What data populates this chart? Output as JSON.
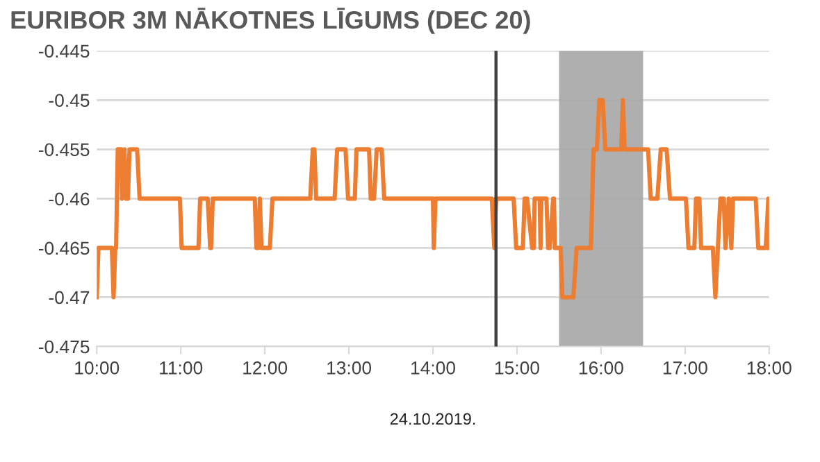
{
  "chart_data": {
    "type": "line",
    "title": "EURIBOR 3M NĀKOTNES LĪGUMS (DEC 20)",
    "xlabel": "24.10.2019.",
    "xlim": [
      10,
      18
    ],
    "xticks": [
      {
        "value": 10,
        "label": "10:00"
      },
      {
        "value": 11,
        "label": "11:00"
      },
      {
        "value": 12,
        "label": "12:00"
      },
      {
        "value": 13,
        "label": "13:00"
      },
      {
        "value": 14,
        "label": "14:00"
      },
      {
        "value": 15,
        "label": "15:00"
      },
      {
        "value": 16,
        "label": "16:00"
      },
      {
        "value": 17,
        "label": "17:00"
      },
      {
        "value": 18,
        "label": "18:00"
      }
    ],
    "ylim": [
      -0.475,
      -0.445
    ],
    "yticks": [
      -0.475,
      -0.47,
      -0.465,
      -0.46,
      -0.455,
      -0.45,
      -0.445
    ],
    "grid": "y",
    "marker": "none",
    "line_style": "solid",
    "ref_lines": [
      {
        "axis": "x",
        "value": 14.75,
        "color": "#404040"
      }
    ],
    "bands": [
      {
        "axis": "x",
        "from": 15.5,
        "to": 16.5,
        "color": "#a6a6a6"
      }
    ],
    "series": [
      {
        "color": "#ed7d31",
        "x": [
          10.0,
          10.02,
          10.18,
          10.2,
          10.22,
          10.23,
          10.25,
          10.29,
          10.3,
          10.33,
          10.35,
          10.37,
          10.39,
          10.48,
          10.51,
          10.99,
          11.01,
          11.21,
          11.23,
          11.32,
          11.35,
          11.36,
          11.38,
          11.88,
          11.9,
          11.92,
          11.94,
          11.96,
          12.06,
          12.09,
          12.54,
          12.57,
          12.59,
          12.61,
          12.83,
          12.86,
          12.96,
          12.99,
          13.07,
          13.09,
          13.24,
          13.26,
          13.3,
          13.33,
          13.39,
          13.42,
          14.0,
          14.01,
          14.03,
          14.7,
          14.73,
          14.75,
          14.96,
          14.99,
          15.07,
          15.09,
          15.12,
          15.18,
          15.2,
          15.21,
          15.27,
          15.28,
          15.29,
          15.35,
          15.37,
          15.39,
          15.43,
          15.44,
          15.45,
          15.52,
          15.54,
          15.67,
          15.71,
          15.88,
          15.91,
          15.95,
          15.98,
          16.02,
          16.05,
          16.24,
          16.26,
          16.28,
          16.56,
          16.59,
          16.67,
          16.71,
          16.78,
          16.82,
          17.01,
          17.04,
          17.11,
          17.13,
          17.17,
          17.19,
          17.33,
          17.36,
          17.39,
          17.42,
          17.46,
          17.48,
          17.52,
          17.55,
          17.57,
          17.84,
          17.87,
          17.96,
          17.99,
          18.0
        ],
        "values": [
          -0.47,
          -0.465,
          -0.465,
          -0.47,
          -0.465,
          -0.465,
          -0.455,
          -0.455,
          -0.46,
          -0.455,
          -0.46,
          -0.46,
          -0.455,
          -0.455,
          -0.46,
          -0.46,
          -0.465,
          -0.465,
          -0.46,
          -0.46,
          -0.465,
          -0.465,
          -0.46,
          -0.46,
          -0.465,
          -0.465,
          -0.46,
          -0.465,
          -0.465,
          -0.46,
          -0.46,
          -0.455,
          -0.455,
          -0.46,
          -0.46,
          -0.455,
          -0.455,
          -0.46,
          -0.46,
          -0.455,
          -0.455,
          -0.46,
          -0.46,
          -0.455,
          -0.455,
          -0.46,
          -0.46,
          -0.465,
          -0.46,
          -0.46,
          -0.465,
          -0.46,
          -0.46,
          -0.465,
          -0.465,
          -0.46,
          -0.46,
          -0.465,
          -0.465,
          -0.46,
          -0.46,
          -0.465,
          -0.46,
          -0.46,
          -0.465,
          -0.465,
          -0.46,
          -0.46,
          -0.465,
          -0.465,
          -0.47,
          -0.47,
          -0.465,
          -0.465,
          -0.455,
          -0.455,
          -0.45,
          -0.45,
          -0.455,
          -0.455,
          -0.45,
          -0.455,
          -0.455,
          -0.46,
          -0.46,
          -0.455,
          -0.455,
          -0.46,
          -0.46,
          -0.465,
          -0.465,
          -0.46,
          -0.46,
          -0.465,
          -0.465,
          -0.47,
          -0.465,
          -0.46,
          -0.46,
          -0.465,
          -0.46,
          -0.465,
          -0.46,
          -0.46,
          -0.465,
          -0.465,
          -0.46,
          -0.465
        ]
      }
    ]
  }
}
